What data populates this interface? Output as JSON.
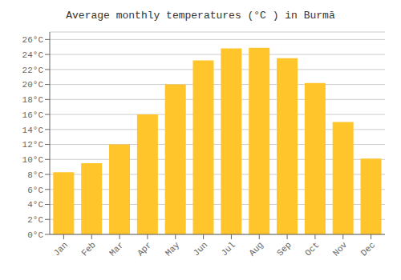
{
  "chart_data": {
    "type": "bar",
    "title": "Average monthly temperatures (°C ) in Burmā",
    "categories": [
      "Jan",
      "Feb",
      "Mar",
      "Apr",
      "May",
      "Jun",
      "Jul",
      "Aug",
      "Sep",
      "Oct",
      "Nov",
      "Dec"
    ],
    "values": [
      8.3,
      9.5,
      12.0,
      16.0,
      20.0,
      23.2,
      24.8,
      24.9,
      23.5,
      20.2,
      15.0,
      10.1
    ],
    "color": "#FFC52A",
    "ylim": [
      0,
      27
    ],
    "yticks": [
      {
        "value": 0,
        "label": "0°C"
      },
      {
        "value": 2,
        "label": "2°C"
      },
      {
        "value": 4,
        "label": "4°C"
      },
      {
        "value": 6,
        "label": "6°C"
      },
      {
        "value": 8,
        "label": "8°C"
      },
      {
        "value": 10,
        "label": "10°C"
      },
      {
        "value": 12,
        "label": "12°C"
      },
      {
        "value": 14,
        "label": "14°C"
      },
      {
        "value": 16,
        "label": "16°C"
      },
      {
        "value": 18,
        "label": "18°C"
      },
      {
        "value": 20,
        "label": "20°C"
      },
      {
        "value": 22,
        "label": "22°C"
      },
      {
        "value": 24,
        "label": "24°C"
      },
      {
        "value": 26,
        "label": "26°C"
      }
    ],
    "grid": true
  }
}
